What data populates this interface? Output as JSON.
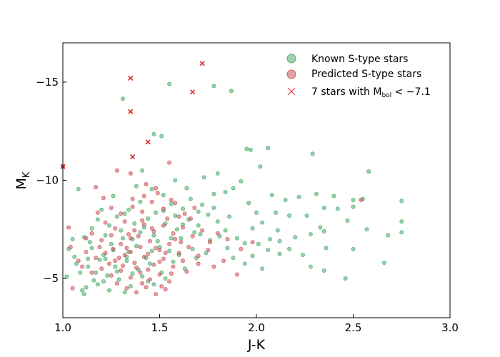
{
  "chart_data": {
    "type": "scatter",
    "xlabel": "J-K",
    "ylabel_main": "M",
    "ylabel_sub": "K",
    "xlim": [
      1.0,
      3.0
    ],
    "ylim": [
      -3.0,
      -17.0
    ],
    "y_inverted": true,
    "xticks": [
      1.0,
      1.5,
      2.0,
      2.5,
      3.0
    ],
    "xtick_labels": [
      "1.0",
      "1.5",
      "2.0",
      "2.5",
      "3.0"
    ],
    "yticks": [
      -5,
      -10,
      -15
    ],
    "ytick_labels": [
      "−5",
      "−10",
      "−15"
    ],
    "grid": false,
    "legend_position": "top-right",
    "colors": {
      "known": "#3aa55c",
      "predicted": "#c8454b",
      "bright": "#e02c2c"
    },
    "legend": [
      {
        "label": "Known S-type stars",
        "marker": "circle",
        "color": "#3aa55c"
      },
      {
        "label": "Predicted S-type stars",
        "marker": "circle",
        "color": "#c8454b"
      },
      {
        "label_main": "7 stars with M",
        "label_sub": "bol",
        "label_tail": " < −7.1",
        "marker": "x",
        "color": "#e02c2c"
      }
    ],
    "series": [
      {
        "name": "Known S-type stars",
        "points": [
          [
            1.55,
            -14.9
          ],
          [
            1.78,
            -14.8
          ],
          [
            1.87,
            -14.55
          ],
          [
            1.31,
            -14.15
          ],
          [
            1.47,
            -12.35
          ],
          [
            1.51,
            -12.25
          ],
          [
            1.95,
            -11.6
          ],
          [
            1.97,
            -11.55
          ],
          [
            2.06,
            -11.65
          ],
          [
            2.29,
            -11.35
          ],
          [
            2.58,
            -10.45
          ],
          [
            2.02,
            -10.7
          ],
          [
            1.41,
            -10.5
          ],
          [
            1.8,
            -10.35
          ],
          [
            1.73,
            -10.15
          ],
          [
            1.92,
            -9.95
          ],
          [
            2.15,
            -9.0
          ],
          [
            2.22,
            -9.15
          ],
          [
            2.08,
            -9.25
          ],
          [
            2.31,
            -9.3
          ],
          [
            2.4,
            -9.2
          ],
          [
            2.5,
            -9.0
          ],
          [
            2.55,
            -9.05
          ],
          [
            2.75,
            -8.95
          ],
          [
            2.35,
            -8.6
          ],
          [
            2.42,
            -8.55
          ],
          [
            2.5,
            -8.65
          ],
          [
            2.17,
            -8.2
          ],
          [
            2.1,
            -8.35
          ],
          [
            2.0,
            -8.35
          ],
          [
            2.26,
            -8.2
          ],
          [
            2.47,
            -7.95
          ],
          [
            2.33,
            -7.6
          ],
          [
            2.35,
            -7.4
          ],
          [
            2.57,
            -7.5
          ],
          [
            2.68,
            -7.2
          ],
          [
            2.75,
            -7.35
          ],
          [
            2.75,
            -7.9
          ],
          [
            2.2,
            -7.1
          ],
          [
            2.28,
            -7.25
          ],
          [
            2.36,
            -6.55
          ],
          [
            2.5,
            -6.5
          ],
          [
            2.24,
            -6.2
          ],
          [
            2.12,
            -6.25
          ],
          [
            1.98,
            -6.15
          ],
          [
            2.06,
            -6.45
          ],
          [
            2.12,
            -6.9
          ],
          [
            2.01,
            -6.75
          ],
          [
            2.07,
            -7.0
          ],
          [
            2.17,
            -6.5
          ],
          [
            2.28,
            -5.6
          ],
          [
            2.35,
            -5.4
          ],
          [
            2.46,
            -5.0
          ],
          [
            2.66,
            -5.8
          ],
          [
            1.88,
            -6.05
          ],
          [
            1.94,
            -5.75
          ],
          [
            2.03,
            -5.5
          ],
          [
            1.08,
            -9.55
          ],
          [
            1.05,
            -7.0
          ],
          [
            1.03,
            -6.5
          ],
          [
            1.02,
            -5.1
          ],
          [
            1.1,
            -4.4
          ],
          [
            1.11,
            -4.2
          ],
          [
            1.18,
            -4.7
          ],
          [
            1.23,
            -5.15
          ],
          [
            1.13,
            -5.6
          ],
          [
            1.07,
            -5.75
          ],
          [
            1.15,
            -6.55
          ],
          [
            1.21,
            -6.2
          ],
          [
            1.26,
            -6.45
          ],
          [
            1.33,
            -6.1
          ],
          [
            1.38,
            -6.65
          ],
          [
            1.43,
            -6.05
          ],
          [
            1.49,
            -6.9
          ],
          [
            1.55,
            -6.4
          ],
          [
            1.61,
            -7.05
          ],
          [
            1.67,
            -6.5
          ],
          [
            1.71,
            -7.25
          ],
          [
            1.76,
            -6.95
          ],
          [
            1.81,
            -7.15
          ],
          [
            1.85,
            -6.55
          ],
          [
            1.22,
            -7.2
          ],
          [
            1.3,
            -7.45
          ],
          [
            1.36,
            -7.0
          ],
          [
            1.42,
            -7.6
          ],
          [
            1.47,
            -7.2
          ],
          [
            1.53,
            -7.8
          ],
          [
            1.59,
            -7.5
          ],
          [
            1.65,
            -8.0
          ],
          [
            1.7,
            -7.7
          ],
          [
            1.75,
            -8.25
          ],
          [
            1.8,
            -7.9
          ],
          [
            1.86,
            -8.15
          ],
          [
            1.62,
            -8.55
          ],
          [
            1.56,
            -8.8
          ],
          [
            1.48,
            -8.35
          ],
          [
            1.4,
            -8.9
          ],
          [
            1.34,
            -8.5
          ],
          [
            1.28,
            -8.15
          ],
          [
            1.18,
            -8.0
          ],
          [
            1.15,
            -7.55
          ],
          [
            1.11,
            -7.1
          ],
          [
            1.27,
            -5.6
          ],
          [
            1.33,
            -5.9
          ],
          [
            1.39,
            -5.45
          ],
          [
            1.45,
            -5.75
          ],
          [
            1.51,
            -5.3
          ],
          [
            1.57,
            -5.85
          ],
          [
            1.63,
            -5.5
          ],
          [
            1.69,
            -6.05
          ],
          [
            1.19,
            -5.95
          ],
          [
            1.25,
            -6.75
          ],
          [
            1.31,
            -7.05
          ],
          [
            1.37,
            -7.8
          ],
          [
            1.44,
            -8.05
          ],
          [
            1.52,
            -8.45
          ],
          [
            1.58,
            -8.2
          ],
          [
            1.66,
            -9.05
          ],
          [
            1.72,
            -8.75
          ],
          [
            1.78,
            -9.3
          ],
          [
            1.52,
            -9.25
          ],
          [
            1.46,
            -9.55
          ],
          [
            1.38,
            -9.7
          ],
          [
            1.13,
            -6.0
          ],
          [
            1.17,
            -5.3
          ],
          [
            1.21,
            -4.85
          ],
          [
            1.29,
            -4.95
          ],
          [
            1.35,
            -4.6
          ],
          [
            1.41,
            -5.1
          ],
          [
            1.47,
            -4.7
          ],
          [
            1.53,
            -5.0
          ],
          [
            1.16,
            -4.9
          ],
          [
            1.09,
            -5.3
          ],
          [
            1.06,
            -6.1
          ],
          [
            1.24,
            -7.7
          ],
          [
            1.32,
            -8.3
          ],
          [
            1.4,
            -7.35
          ],
          [
            1.5,
            -6.6
          ],
          [
            1.6,
            -6.2
          ],
          [
            1.74,
            -6.3
          ],
          [
            1.68,
            -7.35
          ],
          [
            1.84,
            -7.45
          ],
          [
            1.9,
            -7.05
          ],
          [
            1.94,
            -6.8
          ],
          [
            1.64,
            -9.6
          ],
          [
            1.58,
            -10.0
          ],
          [
            1.88,
            -9.6
          ],
          [
            1.2,
            -8.5
          ],
          [
            1.26,
            -9.2
          ],
          [
            1.34,
            -6.35
          ],
          [
            1.46,
            -6.4
          ],
          [
            1.56,
            -7.05
          ],
          [
            1.62,
            -7.75
          ],
          [
            1.7,
            -8.4
          ],
          [
            1.78,
            -8.6
          ],
          [
            1.14,
            -6.85
          ],
          [
            1.22,
            -6.0
          ],
          [
            1.28,
            -5.35
          ],
          [
            1.36,
            -5.25
          ],
          [
            1.44,
            -4.85
          ],
          [
            1.12,
            -4.55
          ],
          [
            1.24,
            -4.4
          ],
          [
            1.32,
            -4.3
          ],
          [
            1.98,
            -7.55
          ],
          [
            2.03,
            -7.85
          ],
          [
            2.11,
            -7.45
          ],
          [
            1.96,
            -8.85
          ],
          [
            1.84,
            -9.4
          ]
        ]
      },
      {
        "name": "Predicted S-type stars",
        "points": [
          [
            1.0,
            -10.7
          ],
          [
            1.28,
            -10.5
          ],
          [
            1.35,
            -10.35
          ],
          [
            1.55,
            -10.9
          ],
          [
            1.43,
            -9.8
          ],
          [
            1.48,
            -9.6
          ],
          [
            1.17,
            -9.65
          ],
          [
            1.21,
            -9.1
          ],
          [
            1.25,
            -8.6
          ],
          [
            1.3,
            -8.3
          ],
          [
            1.36,
            -8.65
          ],
          [
            1.41,
            -8.4
          ],
          [
            1.46,
            -8.9
          ],
          [
            1.52,
            -8.55
          ],
          [
            1.58,
            -8.85
          ],
          [
            1.63,
            -8.3
          ],
          [
            1.68,
            -8.6
          ],
          [
            1.22,
            -7.85
          ],
          [
            1.27,
            -7.55
          ],
          [
            1.32,
            -7.9
          ],
          [
            1.37,
            -7.45
          ],
          [
            1.42,
            -7.75
          ],
          [
            1.47,
            -7.4
          ],
          [
            1.52,
            -7.7
          ],
          [
            1.57,
            -7.3
          ],
          [
            1.62,
            -7.6
          ],
          [
            1.67,
            -7.15
          ],
          [
            1.72,
            -7.45
          ],
          [
            1.15,
            -7.3
          ],
          [
            1.2,
            -6.95
          ],
          [
            1.25,
            -7.2
          ],
          [
            1.3,
            -6.75
          ],
          [
            1.35,
            -7.05
          ],
          [
            1.4,
            -6.6
          ],
          [
            1.45,
            -6.9
          ],
          [
            1.5,
            -6.45
          ],
          [
            1.55,
            -6.75
          ],
          [
            1.6,
            -6.3
          ],
          [
            1.65,
            -6.6
          ],
          [
            1.7,
            -6.15
          ],
          [
            1.75,
            -6.45
          ],
          [
            1.12,
            -6.35
          ],
          [
            1.17,
            -6.05
          ],
          [
            1.22,
            -6.3
          ],
          [
            1.27,
            -5.9
          ],
          [
            1.32,
            -6.2
          ],
          [
            1.37,
            -5.8
          ],
          [
            1.42,
            -6.1
          ],
          [
            1.47,
            -5.7
          ],
          [
            1.52,
            -6.0
          ],
          [
            1.57,
            -5.6
          ],
          [
            1.62,
            -5.9
          ],
          [
            1.1,
            -5.6
          ],
          [
            1.15,
            -5.3
          ],
          [
            1.2,
            -5.5
          ],
          [
            1.25,
            -5.15
          ],
          [
            1.3,
            -5.4
          ],
          [
            1.35,
            -5.05
          ],
          [
            1.4,
            -5.3
          ],
          [
            1.45,
            -4.95
          ],
          [
            1.5,
            -5.2
          ],
          [
            1.55,
            -4.85
          ],
          [
            1.28,
            -4.75
          ],
          [
            1.33,
            -4.5
          ],
          [
            1.38,
            -4.3
          ],
          [
            1.43,
            -4.55
          ],
          [
            1.48,
            -4.2
          ],
          [
            1.53,
            -4.45
          ],
          [
            1.05,
            -4.5
          ],
          [
            1.08,
            -5.9
          ],
          [
            1.04,
            -6.6
          ],
          [
            1.03,
            -7.6
          ],
          [
            1.78,
            -5.6
          ],
          [
            1.83,
            -5.9
          ],
          [
            1.92,
            -6.5
          ],
          [
            1.98,
            -6.85
          ],
          [
            1.85,
            -7.0
          ],
          [
            2.54,
            -9.0
          ],
          [
            1.9,
            -5.2
          ],
          [
            1.35,
            -6.35
          ],
          [
            1.44,
            -6.25
          ],
          [
            1.39,
            -7.15
          ],
          [
            1.33,
            -6.55
          ],
          [
            1.29,
            -6.05
          ],
          [
            1.24,
            -5.75
          ],
          [
            1.48,
            -6.55
          ],
          [
            1.58,
            -7.0
          ],
          [
            1.53,
            -6.3
          ],
          [
            1.61,
            -6.85
          ],
          [
            1.46,
            -7.55
          ],
          [
            1.41,
            -7.95
          ],
          [
            1.34,
            -7.25
          ],
          [
            1.26,
            -6.5
          ],
          [
            1.19,
            -6.6
          ],
          [
            1.38,
            -5.55
          ],
          [
            1.44,
            -5.45
          ],
          [
            1.5,
            -5.85
          ],
          [
            1.56,
            -5.25
          ],
          [
            1.64,
            -5.35
          ],
          [
            1.7,
            -5.75
          ],
          [
            1.76,
            -6.85
          ],
          [
            1.8,
            -7.3
          ],
          [
            1.66,
            -8.05
          ],
          [
            1.6,
            -8.15
          ],
          [
            1.54,
            -8.05
          ],
          [
            1.18,
            -8.35
          ],
          [
            1.12,
            -7.05
          ],
          [
            1.42,
            -9.2
          ],
          [
            1.49,
            -9.35
          ],
          [
            1.56,
            -9.0
          ],
          [
            1.36,
            -9.05
          ],
          [
            1.31,
            -5.65
          ],
          [
            1.41,
            -4.75
          ],
          [
            1.51,
            -4.6
          ]
        ]
      },
      {
        "name": "7 stars with Mbol < −7.1",
        "points": [
          [
            1.72,
            -15.95
          ],
          [
            1.35,
            -15.2
          ],
          [
            1.67,
            -14.5
          ],
          [
            1.35,
            -13.5
          ],
          [
            1.44,
            -11.95
          ],
          [
            1.36,
            -11.2
          ],
          [
            1.0,
            -10.7
          ]
        ]
      }
    ]
  }
}
